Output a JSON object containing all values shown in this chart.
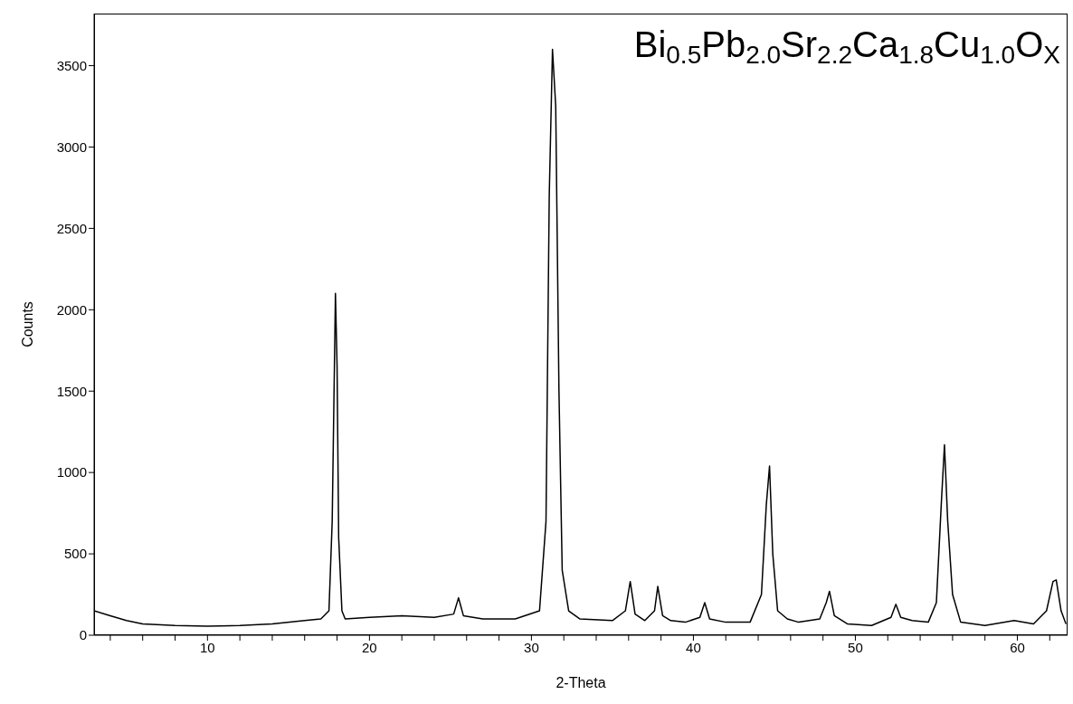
{
  "chart_data": {
    "type": "line",
    "annotations": [
      "Bi$_{0.5}$Pb$_{2.0}$Sr$_{2.2}$Ca$_{1.8}$Cu$_{1.0}$O$_{X}$"
    ],
    "xlabel": "2-Theta",
    "ylabel": "Counts",
    "x": [
      3,
      4,
      5,
      6,
      8,
      10,
      12,
      14,
      16,
      17,
      17.5,
      17.7,
      17.9,
      18.0,
      18.1,
      18.3,
      18.5,
      20,
      22,
      24,
      25.2,
      25.5,
      25.8,
      27,
      29,
      30.5,
      30.9,
      31.1,
      31.3,
      31.5,
      31.7,
      31.9,
      32.3,
      33,
      35,
      35.8,
      36.1,
      36.4,
      37,
      37.6,
      37.8,
      38.1,
      38.6,
      39.5,
      40.4,
      40.7,
      41,
      42,
      43.5,
      44.2,
      44.5,
      44.7,
      44.9,
      45.2,
      45.8,
      46.5,
      47.8,
      48.2,
      48.4,
      48.7,
      49.5,
      51,
      52.2,
      52.5,
      52.8,
      53.5,
      54.5,
      55,
      55.3,
      55.5,
      55.7,
      56,
      56.5,
      58,
      59.8,
      61,
      61.8,
      62.2,
      62.4,
      62.7,
      63
    ],
    "series": [
      {
        "color": "#000000",
        "values": [
          150,
          120,
          90,
          70,
          60,
          55,
          60,
          70,
          90,
          100,
          150,
          700,
          2100,
          1660,
          600,
          150,
          100,
          110,
          120,
          110,
          130,
          230,
          120,
          100,
          100,
          150,
          700,
          2700,
          3600,
          3250,
          1500,
          400,
          150,
          100,
          90,
          150,
          330,
          130,
          90,
          150,
          300,
          120,
          90,
          80,
          110,
          200,
          100,
          80,
          80,
          250,
          800,
          1040,
          500,
          150,
          100,
          80,
          100,
          200,
          270,
          120,
          70,
          60,
          110,
          190,
          110,
          90,
          80,
          200,
          800,
          1170,
          700,
          250,
          80,
          60,
          90,
          70,
          150,
          330,
          340,
          150,
          70
        ]
      }
    ],
    "xlim": [
      3,
      63.1
    ],
    "ylim": [
      0,
      3820
    ],
    "xticks": [
      {
        "value": 4,
        "label": null
      },
      {
        "value": 6,
        "label": null
      },
      {
        "value": 8,
        "label": null
      },
      10,
      {
        "value": 12,
        "label": null
      },
      {
        "value": 14,
        "label": null
      },
      {
        "value": 16,
        "label": null
      },
      {
        "value": 18,
        "label": null
      },
      20,
      {
        "value": 22,
        "label": null
      },
      {
        "value": 24,
        "label": null
      },
      {
        "value": 26,
        "label": null
      },
      {
        "value": 28,
        "label": null
      },
      30,
      {
        "value": 32,
        "label": null
      },
      {
        "value": 34,
        "label": null
      },
      {
        "value": 36,
        "label": null
      },
      {
        "value": 38,
        "label": null
      },
      40,
      {
        "value": 42,
        "label": null
      },
      {
        "value": 44,
        "label": null
      },
      {
        "value": 46,
        "label": null
      },
      {
        "value": 48,
        "label": null
      },
      50,
      {
        "value": 52,
        "label": null
      },
      {
        "value": 54,
        "label": null
      },
      {
        "value": 56,
        "label": null
      },
      {
        "value": 58,
        "label": null
      },
      60,
      {
        "value": 62,
        "label": null
      }
    ],
    "yticks": [
      0,
      500,
      1000,
      1500,
      2000,
      2500,
      3000,
      3500
    ],
    "grid": false,
    "legend": false,
    "marker": "none",
    "line_style": "solid"
  }
}
